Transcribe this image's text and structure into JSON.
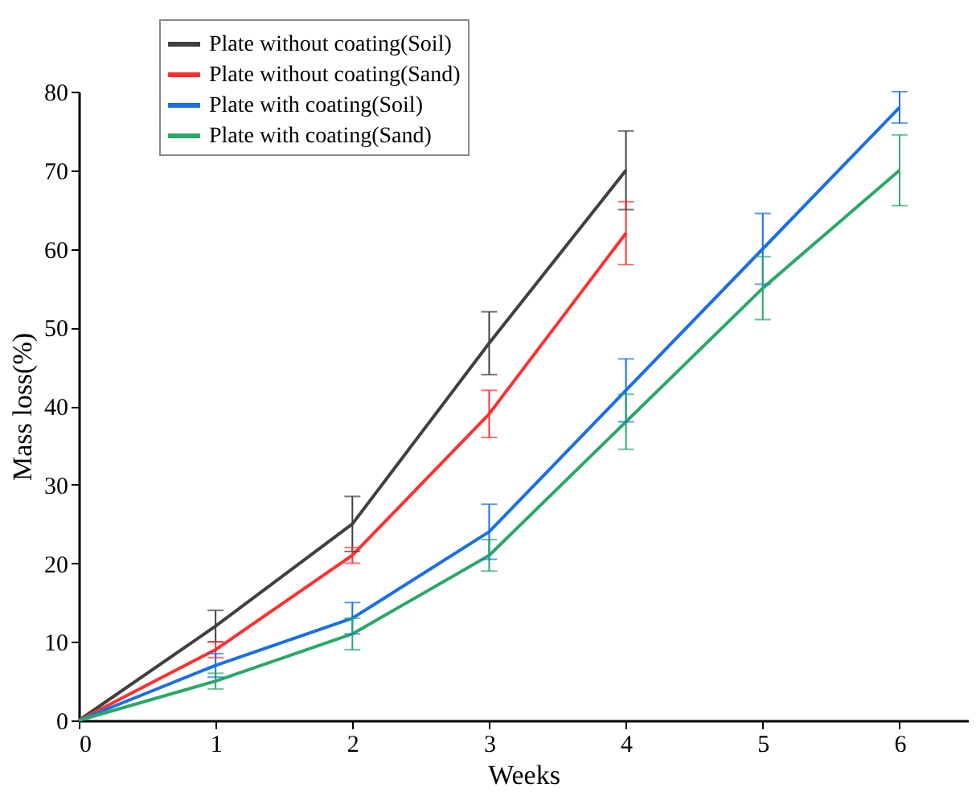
{
  "chart_data": {
    "type": "line",
    "xlabel": "Weeks",
    "ylabel": "Mass loss(%)",
    "xlim": [
      0,
      6.5
    ],
    "xticks": [
      0,
      1,
      2,
      3,
      4,
      5,
      6
    ],
    "ylim": [
      0,
      80
    ],
    "yticks": [
      0,
      10,
      20,
      30,
      40,
      50,
      60,
      70,
      80
    ],
    "grid": false,
    "legend": "top left",
    "marker": "none",
    "line_style": "solid",
    "series": [
      {
        "name": "Plate without coating(Soil)",
        "color": "#404040",
        "x": [
          0,
          1,
          2,
          3,
          4
        ],
        "values": [
          0,
          12,
          25,
          48,
          70
        ],
        "errors": [
          null,
          2,
          3.5,
          4,
          5
        ]
      },
      {
        "name": "Plate without coating(Sand)",
        "color": "#ff3030",
        "x": [
          0,
          1,
          2,
          3,
          4
        ],
        "values": [
          0,
          9,
          21,
          39,
          62
        ],
        "errors": [
          null,
          1,
          1,
          3,
          4
        ]
      },
      {
        "name": "Plate with coating(Soil)",
        "color": "#1a6fe8",
        "x": [
          0,
          1,
          2,
          3,
          4,
          5,
          6
        ],
        "values": [
          0,
          7,
          13,
          24,
          42,
          60,
          78
        ],
        "errors": [
          null,
          1.5,
          2,
          3.5,
          4,
          4.5,
          2
        ]
      },
      {
        "name": "Plate with coating(Sand)",
        "color": "#2aa868",
        "x": [
          0,
          1,
          2,
          3,
          4,
          5,
          6
        ],
        "values": [
          0,
          5,
          11,
          21,
          38,
          55,
          70
        ],
        "errors": [
          null,
          1,
          2,
          2,
          3.5,
          4,
          4.5
        ]
      }
    ]
  }
}
